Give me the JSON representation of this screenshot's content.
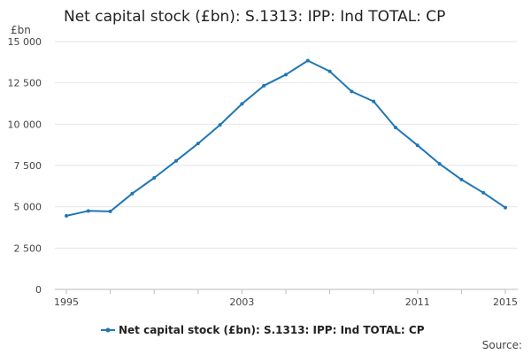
{
  "chart_data": {
    "type": "line",
    "title": "Net capital stock (£bn): S.1313: IPP: Ind TOTAL: CP",
    "unit_label": "£bn",
    "source_label": "Source:",
    "series_color": "#1f77b4",
    "grid": true,
    "legend_placement": "bottom",
    "x": [
      1995,
      1996,
      1997,
      1998,
      1999,
      2000,
      2001,
      2002,
      2003,
      2004,
      2005,
      2006,
      2007,
      2008,
      2009,
      2010,
      2011,
      2012,
      2013,
      2014,
      2015
    ],
    "xlim": [
      1995,
      2015
    ],
    "ylim": [
      0,
      15000
    ],
    "y_ticks": [
      0,
      2500,
      5000,
      7500,
      10000,
      12500,
      15000
    ],
    "y_tick_labels": [
      "0",
      "2 500",
      "5 000",
      "7 500",
      "10 000",
      "12 500",
      "15 000"
    ],
    "x_ticks": [
      1995,
      1999,
      2003,
      2007,
      2011,
      2015
    ],
    "x_tick_labels": [
      "1995",
      "",
      "2003",
      "",
      "2011",
      "2015"
    ],
    "x_minor_ticks": [
      1995,
      1997,
      1999,
      2001,
      2003,
      2005,
      2007,
      2009,
      2011,
      2013,
      2015
    ],
    "series": [
      {
        "name": "Net capital stock (£bn): S.1313: IPP: Ind TOTAL: CP",
        "values": [
          4450,
          4750,
          4720,
          5800,
          6750,
          7780,
          8830,
          9960,
          11230,
          12330,
          13000,
          13850,
          13200,
          11980,
          11380,
          9800,
          8720,
          7600,
          6650,
          5850,
          4950
        ]
      }
    ]
  }
}
